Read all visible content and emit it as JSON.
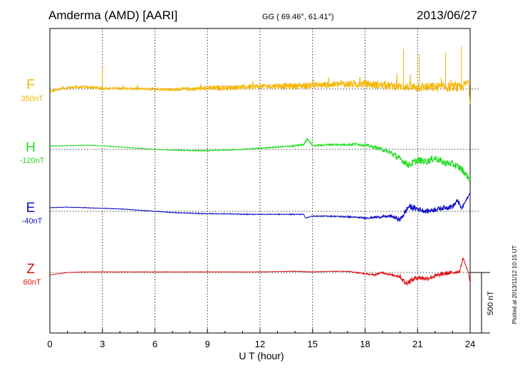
{
  "header": {
    "station": "Amderma (AMD)  [AARI]",
    "coords": "GG ( 69.46°,  61.41°)",
    "date": "2013/06/27"
  },
  "footer": {
    "plotted": "Plotted at 2013/11/12 10:15 UT"
  },
  "colors": {
    "F": "#f5b400",
    "H": "#22dd22",
    "E": "#1010c8",
    "Z": "#e01010"
  },
  "chart_data": {
    "type": "line",
    "xlabel": "U T (hour)",
    "xlim": [
      0,
      24
    ],
    "xticks": [
      0,
      3,
      6,
      9,
      12,
      15,
      18,
      21,
      24
    ],
    "scale_bar": {
      "label": "500 nT",
      "value": 500
    },
    "series": [
      {
        "name": "F",
        "baseline_label": "350nT",
        "color": "#f5b400",
        "x": [
          0,
          0.5,
          1,
          1.5,
          2,
          2.5,
          3,
          3.5,
          4,
          5,
          6,
          7,
          8,
          9,
          10,
          11,
          12,
          13,
          14,
          15,
          16,
          17,
          18,
          19,
          20,
          20.5,
          21,
          21.5,
          22,
          22.5,
          23,
          23.5,
          23.9,
          24
        ],
        "values": [
          -20,
          -5,
          10,
          15,
          15,
          12,
          5,
          5,
          5,
          0,
          0,
          -5,
          0,
          5,
          10,
          15,
          20,
          25,
          25,
          30,
          35,
          40,
          40,
          30,
          20,
          15,
          15,
          15,
          15,
          15,
          15,
          10,
          60,
          -110
        ],
        "noise": [
          8,
          10,
          12,
          12,
          12,
          12,
          12,
          10,
          10,
          10,
          12,
          14,
          16,
          20,
          22,
          22,
          22,
          24,
          26,
          28,
          28,
          32,
          34,
          34,
          34,
          36,
          40,
          40,
          40,
          40,
          40,
          40,
          30,
          20
        ]
      },
      {
        "name": "H",
        "baseline_label": "-120nT",
        "color": "#22dd22",
        "x": [
          0,
          1,
          2,
          3,
          4,
          5,
          6,
          7,
          8,
          9,
          10,
          11,
          12,
          13,
          14,
          14.5,
          14.7,
          15,
          16,
          17,
          17.5,
          18,
          18.5,
          19,
          19.5,
          20,
          20.5,
          21,
          21.5,
          22,
          22.5,
          23,
          23.5,
          24
        ],
        "values": [
          28,
          30,
          35,
          30,
          20,
          10,
          0,
          -5,
          -10,
          -10,
          -5,
          0,
          10,
          20,
          30,
          40,
          90,
          30,
          40,
          40,
          45,
          35,
          20,
          0,
          -30,
          -80,
          -130,
          -90,
          -100,
          -70,
          -110,
          -120,
          -160,
          -250
        ],
        "noise": [
          2,
          2,
          2,
          2,
          2,
          2,
          2,
          3,
          4,
          4,
          4,
          4,
          4,
          5,
          6,
          8,
          8,
          6,
          8,
          10,
          12,
          12,
          14,
          18,
          22,
          26,
          28,
          30,
          30,
          30,
          30,
          30,
          30,
          26
        ]
      },
      {
        "name": "E",
        "baseline_label": "-40nT",
        "color": "#1010c8",
        "x": [
          0,
          1,
          2,
          3,
          4,
          5,
          6,
          7,
          8,
          9,
          10,
          11,
          12,
          13,
          14,
          14.5,
          14.6,
          15,
          16,
          17,
          18,
          19,
          19.5,
          20,
          20.5,
          21,
          21.5,
          22,
          22.5,
          23,
          23.3,
          23.5,
          24
        ],
        "values": [
          30,
          35,
          30,
          25,
          20,
          10,
          0,
          -10,
          -15,
          -20,
          -20,
          -25,
          -25,
          -25,
          -25,
          -25,
          -55,
          -40,
          -40,
          -45,
          -55,
          -45,
          -40,
          -70,
          40,
          20,
          0,
          15,
          30,
          40,
          90,
          20,
          150
        ],
        "noise": [
          2,
          2,
          2,
          2,
          2,
          2,
          2,
          2,
          3,
          3,
          3,
          3,
          3,
          3,
          3,
          3,
          3,
          4,
          4,
          6,
          8,
          10,
          14,
          20,
          26,
          22,
          20,
          20,
          20,
          22,
          20,
          20,
          10
        ]
      },
      {
        "name": "Z",
        "baseline_label": "60nT",
        "color": "#e01010",
        "x": [
          0,
          1,
          2,
          3,
          4,
          6,
          8,
          10,
          12,
          14,
          15,
          16,
          17,
          18,
          18.5,
          19,
          19.5,
          20,
          20.3,
          21,
          21.5,
          22,
          22.5,
          23,
          23.4,
          23.6,
          23.9,
          24
        ],
        "values": [
          -20,
          0,
          5,
          5,
          5,
          5,
          5,
          5,
          5,
          10,
          5,
          10,
          10,
          -10,
          -20,
          0,
          -20,
          -30,
          -90,
          -40,
          -50,
          -30,
          -10,
          0,
          10,
          120,
          0,
          -90
        ],
        "noise": [
          1,
          1,
          1,
          1,
          1,
          1,
          1,
          1,
          1,
          2,
          2,
          2,
          3,
          6,
          8,
          8,
          10,
          18,
          22,
          20,
          20,
          20,
          18,
          16,
          14,
          10,
          8,
          6
        ]
      }
    ]
  }
}
